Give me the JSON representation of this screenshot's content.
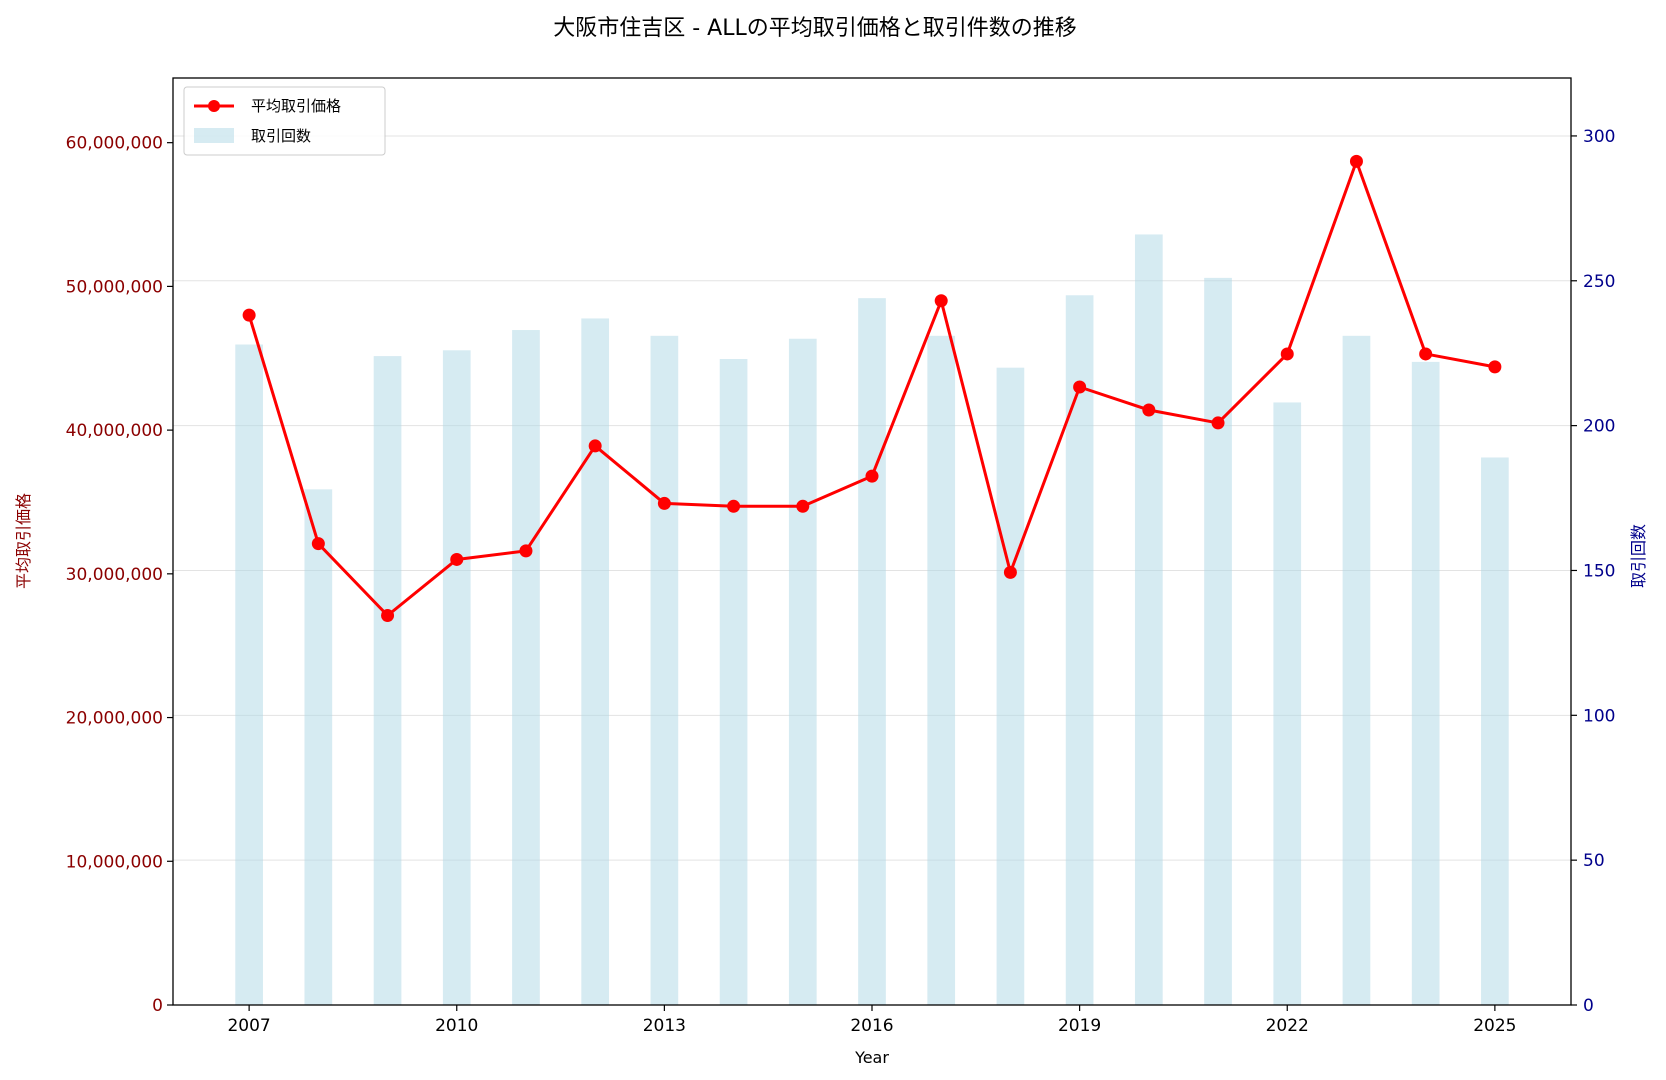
{
  "chart_data": {
    "type": "bar+line",
    "title": "大阪市住吉区 - ALLの平均取引価格と取引件数の推移",
    "xlabel": "Year",
    "ylabel_left": "平均取引価格",
    "ylabel_right": "取引回数",
    "x": [
      2007,
      2008,
      2009,
      2010,
      2011,
      2012,
      2013,
      2014,
      2015,
      2016,
      2017,
      2018,
      2019,
      2020,
      2021,
      2022,
      2023,
      2024,
      2025
    ],
    "x_ticks": [
      2007,
      2010,
      2013,
      2016,
      2019,
      2022,
      2025
    ],
    "xlim": [
      2005.9,
      2026.1
    ],
    "ylim_left": [
      0,
      64500000
    ],
    "ylim_right": [
      0,
      320
    ],
    "y_ticks_left": [
      0,
      10000000,
      20000000,
      30000000,
      40000000,
      50000000,
      60000000
    ],
    "y_tick_labels_left": [
      "0",
      "10,000,000",
      "20,000,000",
      "30,000,000",
      "40,000,000",
      "50,000,000",
      "60,000,000"
    ],
    "y_ticks_right": [
      0,
      50,
      100,
      150,
      200,
      250,
      300
    ],
    "grid": true,
    "legend_position": "top-left",
    "series": [
      {
        "name": "平均取引価格",
        "type": "line",
        "axis": "left",
        "color": "#ff0000",
        "values": [
          48000000,
          32100000,
          27100000,
          31000000,
          31600000,
          38900000,
          34900000,
          34700000,
          34700000,
          36800000,
          49000000,
          30100000,
          43000000,
          41400000,
          40500000,
          45300000,
          58700000,
          45300000,
          44400000
        ]
      },
      {
        "name": "取引回数",
        "type": "bar",
        "axis": "right",
        "color": "#add8e6",
        "values": [
          228,
          178,
          224,
          226,
          233,
          237,
          231,
          223,
          230,
          244,
          231,
          220,
          245,
          266,
          251,
          208,
          231,
          222,
          189
        ]
      }
    ],
    "colors": {
      "left_axis": "#8b0000",
      "right_axis": "#00008b",
      "line": "#ff0000",
      "bar": "#add8e6"
    }
  }
}
